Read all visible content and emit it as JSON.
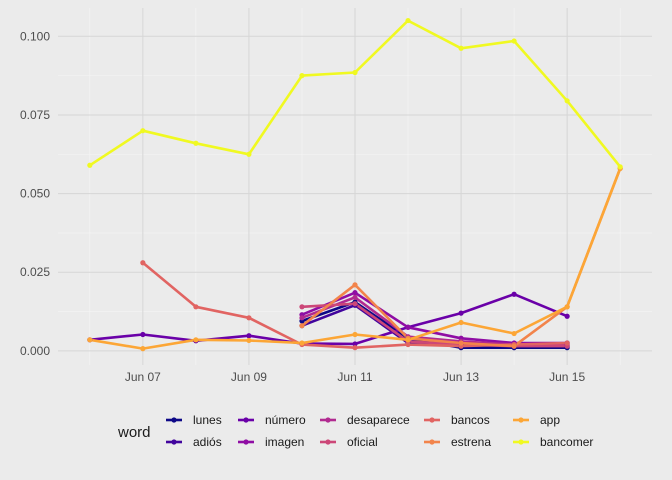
{
  "chart_data": {
    "type": "line",
    "x_tick_labels": [
      "Jun 07",
      "Jun 09",
      "Jun 11",
      "Jun 13",
      "Jun 15"
    ],
    "x_tick_days": [
      7,
      9,
      11,
      13,
      15
    ],
    "xlim": [
      5.4,
      16.6
    ],
    "ylim": [
      -0.0045,
      0.109
    ],
    "y_ticks": [
      0,
      0.025,
      0.05,
      0.075,
      0.1
    ],
    "y_tick_labels": [
      "0.000",
      "0.025",
      "0.050",
      "0.075",
      "0.100"
    ],
    "grid": true,
    "legend_position": "bottom",
    "legend_title": "word",
    "series": [
      {
        "name": "lunes",
        "color": "#0d0887",
        "points": [
          [
            10,
            0.0095
          ],
          [
            11,
            0.0155
          ],
          [
            12,
            0.004
          ],
          [
            13,
            0.001
          ],
          [
            14,
            0.001
          ],
          [
            15,
            0.001
          ]
        ]
      },
      {
        "name": "adiós",
        "color": "#41049d",
        "points": [
          [
            10,
            0.008
          ],
          [
            11,
            0.0145
          ],
          [
            12,
            0.0025
          ],
          [
            13,
            0.002
          ],
          [
            14,
            0.0015
          ],
          [
            15,
            0.0015
          ]
        ]
      },
      {
        "name": "número",
        "color": "#6a00a8",
        "points": [
          [
            6,
            0.0035
          ],
          [
            7,
            0.0052
          ],
          [
            8,
            0.0032
          ],
          [
            9,
            0.0048
          ],
          [
            10,
            0.0023
          ],
          [
            11,
            0.0022
          ],
          [
            12,
            0.0075
          ],
          [
            13,
            0.012
          ],
          [
            14,
            0.018
          ],
          [
            15,
            0.011
          ]
        ]
      },
      {
        "name": "imagen",
        "color": "#8f0da4",
        "points": [
          [
            10,
            0.0115
          ],
          [
            11,
            0.0185
          ],
          [
            12,
            0.0075
          ],
          [
            13,
            0.004
          ],
          [
            14,
            0.0025
          ],
          [
            15,
            0.0025
          ]
        ]
      },
      {
        "name": "desaparece",
        "color": "#b12a90",
        "points": [
          [
            10,
            0.0105
          ],
          [
            11,
            0.017
          ],
          [
            12,
            0.0045
          ],
          [
            13,
            0.003
          ],
          [
            14,
            0.002
          ],
          [
            15,
            0.002
          ]
        ]
      },
      {
        "name": "oficial",
        "color": "#cc4778",
        "points": [
          [
            10,
            0.014
          ],
          [
            11,
            0.015
          ],
          [
            12,
            0.003
          ],
          [
            13,
            0.002
          ],
          [
            14,
            0.0015
          ],
          [
            15,
            0.0015
          ]
        ]
      },
      {
        "name": "bancos",
        "color": "#e16462",
        "points": [
          [
            7,
            0.028
          ],
          [
            8,
            0.014
          ],
          [
            9,
            0.0105
          ],
          [
            10,
            0.002
          ],
          [
            11,
            0.001
          ],
          [
            12,
            0.002
          ],
          [
            13,
            0.0015
          ],
          [
            14,
            0.002
          ],
          [
            15,
            0.0025
          ]
        ]
      },
      {
        "name": "estrena",
        "color": "#f2844b",
        "points": [
          [
            10,
            0.008
          ],
          [
            11,
            0.021
          ],
          [
            12,
            0.004
          ],
          [
            13,
            0.0025
          ],
          [
            14,
            0.0015
          ],
          [
            15,
            0.014
          ],
          [
            16,
            0.058
          ]
        ]
      },
      {
        "name": "app",
        "color": "#fca636",
        "points": [
          [
            6,
            0.0035
          ],
          [
            7,
            0.0007
          ],
          [
            8,
            0.0035
          ],
          [
            9,
            0.0033
          ],
          [
            10,
            0.0025
          ],
          [
            11,
            0.0052
          ],
          [
            12,
            0.0035
          ],
          [
            13,
            0.009
          ],
          [
            14,
            0.0055
          ],
          [
            15,
            0.014
          ],
          [
            16,
            0.058
          ]
        ]
      },
      {
        "name": "bancomer",
        "color": "#f0f921",
        "points": [
          [
            6,
            0.059
          ],
          [
            7,
            0.07
          ],
          [
            8,
            0.066
          ],
          [
            9,
            0.0625
          ],
          [
            10,
            0.0875
          ],
          [
            11,
            0.0885
          ],
          [
            12,
            0.105
          ],
          [
            13,
            0.0962
          ],
          [
            14,
            0.0985
          ],
          [
            15,
            0.0795
          ],
          [
            16,
            0.0585
          ]
        ]
      }
    ]
  }
}
